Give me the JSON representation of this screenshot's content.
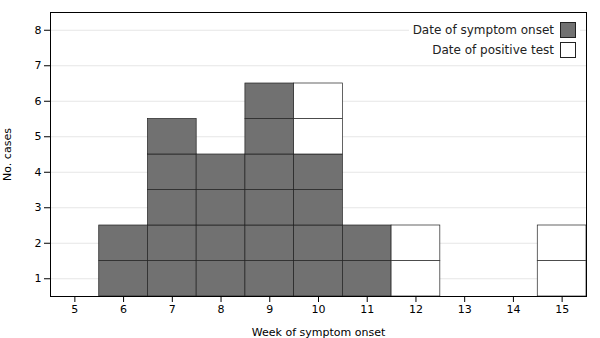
{
  "chart_data": {
    "type": "bar",
    "stacked": true,
    "x": [
      5,
      6,
      7,
      8,
      9,
      10,
      11,
      12,
      13,
      14,
      15
    ],
    "xlabel": "Week of symptom onset",
    "ylabel": "No. cases",
    "series": [
      {
        "name": "Date of symptom onset",
        "color": "#717171",
        "values": [
          0,
          2,
          5,
          4,
          6,
          4,
          2,
          0,
          0,
          0,
          0
        ]
      },
      {
        "name": "Date of positive test",
        "color": "#ffffff",
        "values": [
          0,
          0,
          0,
          0,
          0,
          2,
          0,
          2,
          0,
          0,
          2
        ]
      }
    ],
    "xlim": [
      4.5,
      15.5
    ],
    "xticks": [
      5,
      6,
      7,
      8,
      9,
      10,
      11,
      12,
      13,
      14,
      15
    ],
    "ylim": [
      0,
      8
    ],
    "yticks": [
      {
        "value": 0.5,
        "label": "1"
      },
      {
        "value": 1.5,
        "label": "2"
      },
      {
        "value": 2.5,
        "label": "3"
      },
      {
        "value": 3.5,
        "label": "4"
      },
      {
        "value": 4.5,
        "label": "5"
      },
      {
        "value": 5.5,
        "label": "6"
      },
      {
        "value": 6.5,
        "label": "7"
      },
      {
        "value": 7.5,
        "label": "8"
      }
    ],
    "grid": true,
    "legend": "upper right"
  }
}
